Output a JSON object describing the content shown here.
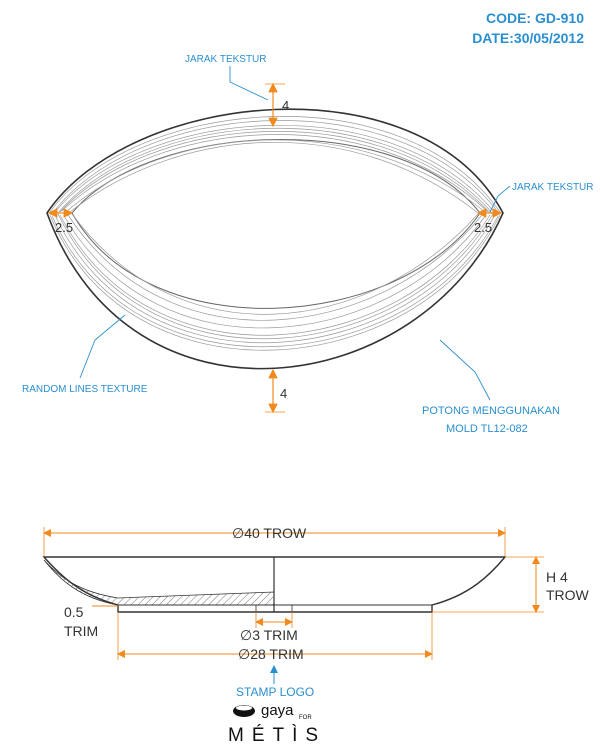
{
  "header": {
    "code": "CODE: GD-910",
    "date": "DATE:30/05/2012"
  },
  "top_view": {
    "texture_spacing_label_top": "JARAK TEKSTUR",
    "texture_spacing_label_right": "JARAK TEKSTUR",
    "dim_top": "4",
    "dim_bottom": "4",
    "dim_left": "2.5",
    "dim_right": "2.5",
    "random_lines_label": "RANDOM LINES TEXTURE",
    "cut_note_line1": "POTONG MENGGUNAKAN",
    "cut_note_line2": "MOLD TL12-082"
  },
  "side_view": {
    "outer_diameter": "∅40 TROW",
    "height_line1": "H 4",
    "height_line2": "TROW",
    "trim_line1": "0.5",
    "trim_line2": "TRIM",
    "inner_small": "∅3 TRIM",
    "inner_large": "∅28 TRIM",
    "stamp_logo": "STAMP LOGO"
  },
  "brand": {
    "sub": "gaya",
    "for": "FOR",
    "name": "MÉTÌS"
  },
  "colors": {
    "accent_blue": "#2a8fd0",
    "dimension_orange": "#f08a1c",
    "outline": "#333333"
  }
}
